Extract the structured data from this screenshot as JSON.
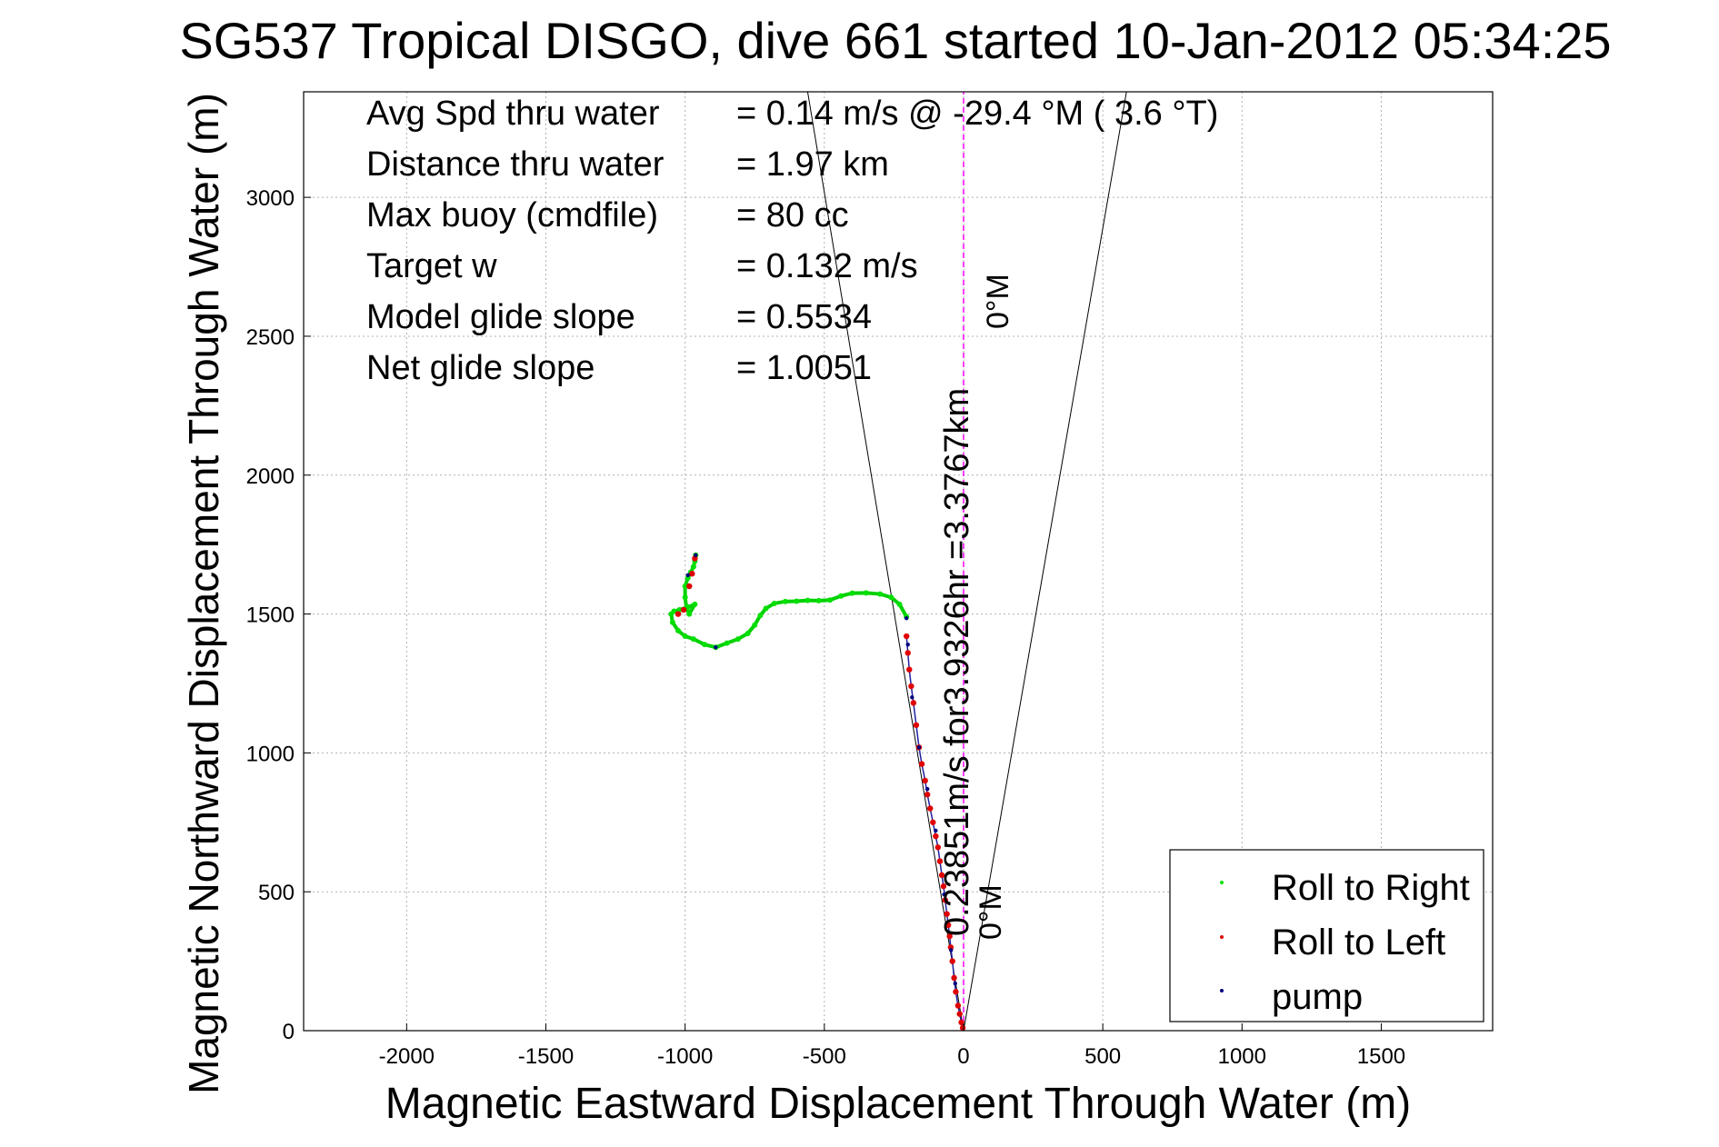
{
  "chart_data": {
    "type": "scatter",
    "title": "SG537 Tropical DISGO, dive 661 started 10-Jan-2012 05:34:25",
    "xlabel": "Magnetic Eastward Displacement Through Water (m)",
    "ylabel": "Magnetic Northward Displacement Through Water (m)",
    "xlim": [
      -2370,
      1900
    ],
    "ylim": [
      0,
      3380
    ],
    "x_ticks": [
      -2000,
      -1500,
      -1000,
      -500,
      0,
      500,
      1000,
      1500
    ],
    "y_ticks": [
      0,
      500,
      1000,
      1500,
      2000,
      2500,
      3000
    ],
    "grid": true,
    "legend_position": "lower-right",
    "legend": [
      {
        "label": "Roll to Right",
        "color": "#00e000"
      },
      {
        "label": "Roll to Left",
        "color": "#e00000"
      },
      {
        "label": "pump",
        "color": "#000080"
      }
    ],
    "stats": [
      {
        "label": "Avg Spd thru water",
        "value": "=  0.14 m/s @  -29.4 °M (  3.6 °T)"
      },
      {
        "label": "Distance thru water",
        "value": "=  1.97 km"
      },
      {
        "label": "Max buoy (cmdfile)",
        "value": "= 80 cc"
      },
      {
        "label": "Target w",
        "value": "= 0.132 m/s"
      },
      {
        "label": "Model glide slope",
        "value": "= 0.5534"
      },
      {
        "label": "Net glide slope",
        "value": "= 1.0051"
      }
    ],
    "annotations": {
      "vector_label": "0.23851m/s for3.9326hr =3.3767km",
      "heading_label_top": "0°M",
      "heading_label_bottom": "0°M"
    },
    "reference_lines": [
      {
        "name": "heading-0M-line",
        "color": "#ff00ff",
        "style": "dashed",
        "points": [
          [
            0,
            0
          ],
          [
            0,
            3380
          ]
        ]
      },
      {
        "name": "cone-left-line",
        "color": "#000000",
        "points": [
          [
            0,
            0
          ],
          [
            -560,
            3380
          ]
        ]
      },
      {
        "name": "cone-right-line",
        "color": "#000000",
        "points": [
          [
            0,
            0
          ],
          [
            585,
            3380
          ]
        ]
      }
    ],
    "series": [
      {
        "name": "Roll to Right",
        "color": "#00e000",
        "points": [
          [
            -205,
            1490
          ],
          [
            -230,
            1535
          ],
          [
            -260,
            1560
          ],
          [
            -300,
            1572
          ],
          [
            -350,
            1576
          ],
          [
            -400,
            1575
          ],
          [
            -440,
            1565
          ],
          [
            -480,
            1550
          ],
          [
            -520,
            1548
          ],
          [
            -560,
            1549
          ],
          [
            -600,
            1546
          ],
          [
            -640,
            1545
          ],
          [
            -680,
            1538
          ],
          [
            -710,
            1520
          ],
          [
            -730,
            1495
          ],
          [
            -750,
            1460
          ],
          [
            -775,
            1430
          ],
          [
            -810,
            1410
          ],
          [
            -850,
            1395
          ],
          [
            -890,
            1380
          ],
          [
            -930,
            1390
          ],
          [
            -970,
            1410
          ],
          [
            -1000,
            1420
          ],
          [
            -1025,
            1440
          ],
          [
            -1045,
            1470
          ],
          [
            -1050,
            1500
          ],
          [
            -1040,
            1510
          ],
          [
            -1020,
            1515
          ],
          [
            -990,
            1525
          ],
          [
            -965,
            1535
          ],
          [
            -985,
            1500
          ],
          [
            -995,
            1520
          ],
          [
            -1000,
            1560
          ],
          [
            -1000,
            1600
          ],
          [
            -990,
            1630
          ],
          [
            -980,
            1650
          ],
          [
            -970,
            1670
          ],
          [
            -965,
            1690
          ],
          [
            -962,
            1712
          ]
        ]
      },
      {
        "name": "Roll to Left",
        "color": "#e00000",
        "points": [
          [
            -3,
            10
          ],
          [
            -8,
            30
          ],
          [
            -14,
            60
          ],
          [
            -20,
            90
          ],
          [
            -28,
            140
          ],
          [
            -34,
            190
          ],
          [
            -40,
            250
          ],
          [
            -46,
            300
          ],
          [
            -50,
            340
          ],
          [
            -55,
            380
          ],
          [
            -60,
            420
          ],
          [
            -66,
            470
          ],
          [
            -72,
            520
          ],
          [
            -78,
            560
          ],
          [
            -85,
            610
          ],
          [
            -92,
            660
          ],
          [
            -100,
            700
          ],
          [
            -110,
            750
          ],
          [
            -120,
            800
          ],
          [
            -130,
            850
          ],
          [
            -138,
            900
          ],
          [
            -150,
            960
          ],
          [
            -160,
            1020
          ],
          [
            -170,
            1100
          ],
          [
            -180,
            1180
          ],
          [
            -188,
            1240
          ],
          [
            -195,
            1300
          ],
          [
            -200,
            1360
          ],
          [
            -205,
            1420
          ],
          [
            -1025,
            1500
          ],
          [
            -1005,
            1515
          ],
          [
            -985,
            1600
          ],
          [
            -975,
            1645
          ],
          [
            -965,
            1700
          ]
        ]
      },
      {
        "name": "pump",
        "color": "#000080",
        "points": [
          [
            -30,
            170
          ],
          [
            -45,
            290
          ],
          [
            -70,
            490
          ],
          [
            -100,
            720
          ],
          [
            -130,
            870
          ],
          [
            -160,
            1020
          ],
          [
            -185,
            1200
          ],
          [
            -200,
            1390
          ],
          [
            -205,
            1485
          ],
          [
            -890,
            1380
          ],
          [
            -990,
            1640
          ],
          [
            -962,
            1712
          ]
        ]
      }
    ]
  }
}
